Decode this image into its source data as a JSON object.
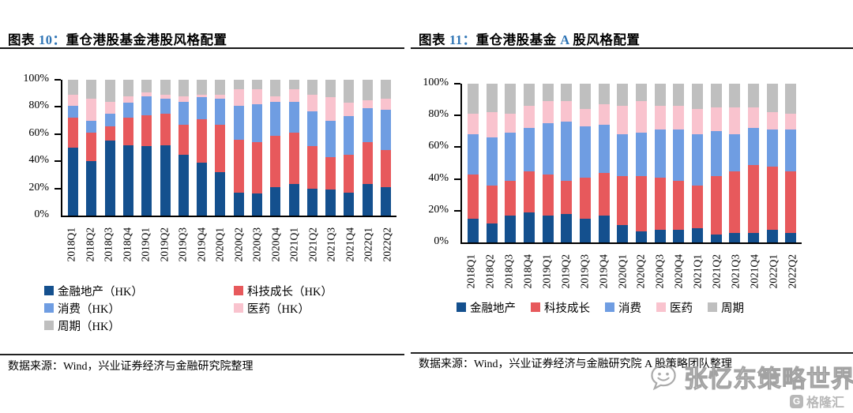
{
  "panels": [
    {
      "title": {
        "figure": "图表",
        "num": "10",
        "sep": "：",
        "pre": "重仓港股基金港股风格配置",
        "accent": "",
        "post": ""
      },
      "source": "数据来源：Wind，兴业证券经济与金融研究院整理"
    },
    {
      "title": {
        "figure": "图表",
        "num": "11",
        "sep": "：",
        "pre": "重仓港股基金 ",
        "accent": "A",
        "post": " 股风格配置"
      },
      "source": "数据来源：Wind，兴业证券经济与金融研究院 A 股策略团队整理"
    }
  ],
  "watermark": {
    "text": "张忆东策略世界",
    "logo_letter": "G",
    "logo": "格隆汇"
  },
  "accent_color": "#2E74B5",
  "chart_data": [
    {
      "type": "bar",
      "stacked": true,
      "percent": true,
      "title": "重仓港股基金港股风格配置",
      "categories": [
        "2018Q1",
        "2018Q2",
        "2018Q3",
        "2018Q4",
        "2019Q1",
        "2019Q2",
        "2019Q3",
        "2019Q4",
        "2020Q1",
        "2020Q2",
        "2020Q3",
        "2020Q4",
        "2021Q1",
        "2021Q2",
        "2021Q3",
        "2021Q4",
        "2022Q1",
        "2022Q2"
      ],
      "yticks": [
        "0%",
        "20%",
        "40%",
        "60%",
        "80%",
        "100%"
      ],
      "ylim": [
        0,
        100
      ],
      "grid": false,
      "legend_position": "bottom-left-two-columns",
      "series": [
        {
          "name": "金融地产（HK）",
          "color": "#14508E",
          "values": [
            50,
            40,
            55,
            52,
            51,
            52,
            45,
            39,
            32,
            17,
            16,
            21,
            23,
            20,
            19,
            17,
            23,
            21
          ]
        },
        {
          "name": "科技成长（HK）",
          "color": "#E7595C",
          "values": [
            22,
            21,
            11,
            20,
            23,
            23,
            22,
            32,
            35,
            39,
            38,
            38,
            38,
            31,
            24,
            28,
            31,
            27
          ]
        },
        {
          "name": "消费（HK）",
          "color": "#6F9DE2",
          "values": [
            9,
            9,
            9,
            11,
            14,
            11,
            17,
            16,
            19,
            25,
            28,
            25,
            23,
            26,
            27,
            28,
            25,
            30
          ]
        },
        {
          "name": "医药（HK）",
          "color": "#F9C3CE",
          "values": [
            8,
            16,
            9,
            5,
            3,
            3,
            4,
            2,
            3,
            12,
            11,
            4,
            9,
            12,
            17,
            10,
            6,
            8
          ]
        },
        {
          "name": "周期（HK）",
          "color": "#BFBFBF",
          "values": [
            11,
            14,
            16,
            12,
            9,
            11,
            12,
            11,
            11,
            7,
            7,
            12,
            7,
            11,
            13,
            17,
            15,
            14
          ]
        }
      ]
    },
    {
      "type": "bar",
      "stacked": true,
      "percent": true,
      "title": "重仓港股基金 A 股风格配置",
      "categories": [
        "2018Q1",
        "2018Q2",
        "2018Q3",
        "2018Q4",
        "2019Q1",
        "2019Q2",
        "2019Q3",
        "2019Q4",
        "2020Q1",
        "2020Q2",
        "2020Q3",
        "2020Q4",
        "2021Q1",
        "2021Q2",
        "2021Q3",
        "2021Q4",
        "2022Q1",
        "2022Q2"
      ],
      "yticks": [
        "0%",
        "20%",
        "40%",
        "60%",
        "80%",
        "100%"
      ],
      "ylim": [
        0,
        100
      ],
      "grid": false,
      "legend_position": "bottom-single-row",
      "series": [
        {
          "name": "金融地产",
          "color": "#14508E",
          "values": [
            15,
            12,
            17,
            19,
            17,
            18,
            15,
            17,
            11,
            7,
            8,
            8,
            9,
            5,
            6,
            6,
            8,
            6
          ]
        },
        {
          "name": "科技成长",
          "color": "#E7595C",
          "values": [
            28,
            24,
            22,
            26,
            26,
            21,
            26,
            27,
            31,
            35,
            33,
            31,
            27,
            37,
            39,
            43,
            40,
            39
          ]
        },
        {
          "name": "消费",
          "color": "#6F9DE2",
          "values": [
            25,
            30,
            30,
            27,
            32,
            37,
            32,
            30,
            26,
            27,
            30,
            32,
            32,
            28,
            23,
            23,
            23,
            26
          ]
        },
        {
          "name": "医药",
          "color": "#F9C3CE",
          "values": [
            13,
            16,
            12,
            14,
            14,
            13,
            11,
            13,
            18,
            20,
            15,
            15,
            16,
            15,
            17,
            13,
            11,
            10
          ]
        },
        {
          "name": "周期",
          "color": "#BFBFBF",
          "values": [
            19,
            18,
            19,
            14,
            11,
            11,
            16,
            13,
            14,
            11,
            14,
            14,
            16,
            15,
            15,
            15,
            18,
            19
          ]
        }
      ]
    }
  ]
}
